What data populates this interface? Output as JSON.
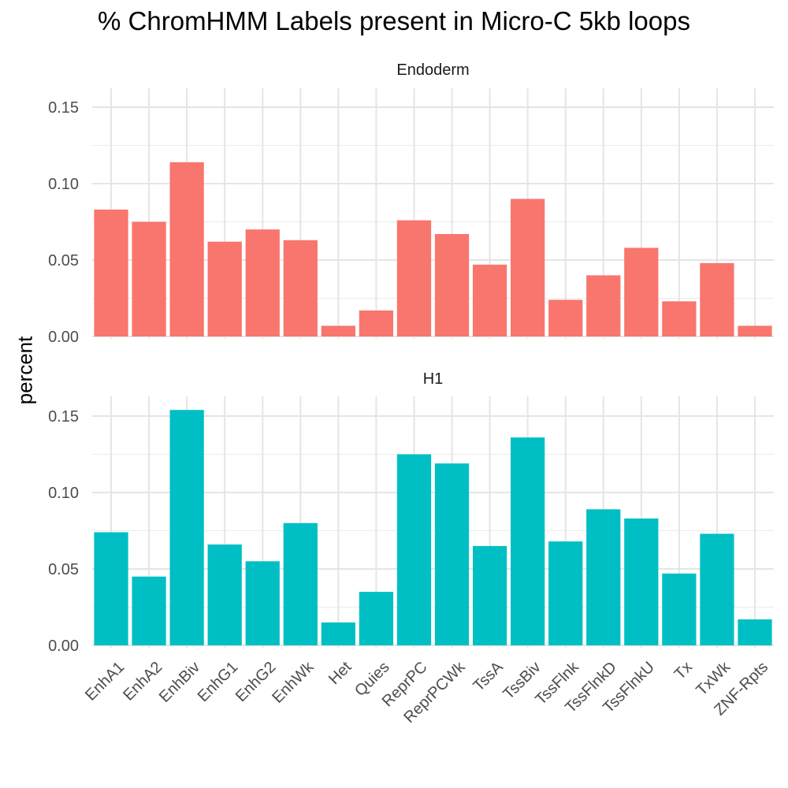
{
  "chart_data": {
    "type": "bar",
    "title": "% ChromHMM Labels present in Micro-C 5kb loops",
    "ylabel": "percent",
    "xlabel": "",
    "categories": [
      "EnhA1",
      "EnhA2",
      "EnhBiv",
      "EnhG1",
      "EnhG2",
      "EnhWk",
      "Het",
      "Quies",
      "ReprPC",
      "ReprPCWk",
      "TssA",
      "TssBiv",
      "TssFlnk",
      "TssFlnkD",
      "TssFlnkU",
      "Tx",
      "TxWk",
      "ZNF-Rpts"
    ],
    "ylim": [
      0,
      0.15
    ],
    "yticks": [
      "0.00",
      "0.05",
      "0.10",
      "0.15"
    ],
    "grid": true,
    "panels": [
      {
        "name": "Endoderm",
        "color": "#F8766D",
        "values": [
          0.083,
          0.075,
          0.114,
          0.062,
          0.07,
          0.063,
          0.007,
          0.017,
          0.076,
          0.067,
          0.047,
          0.09,
          0.024,
          0.04,
          0.058,
          0.023,
          0.048,
          0.007
        ]
      },
      {
        "name": "H1",
        "color": "#00BFC4",
        "values": [
          0.074,
          0.045,
          0.154,
          0.066,
          0.055,
          0.08,
          0.015,
          0.035,
          0.125,
          0.119,
          0.065,
          0.136,
          0.068,
          0.089,
          0.083,
          0.047,
          0.073,
          0.017
        ]
      }
    ]
  }
}
